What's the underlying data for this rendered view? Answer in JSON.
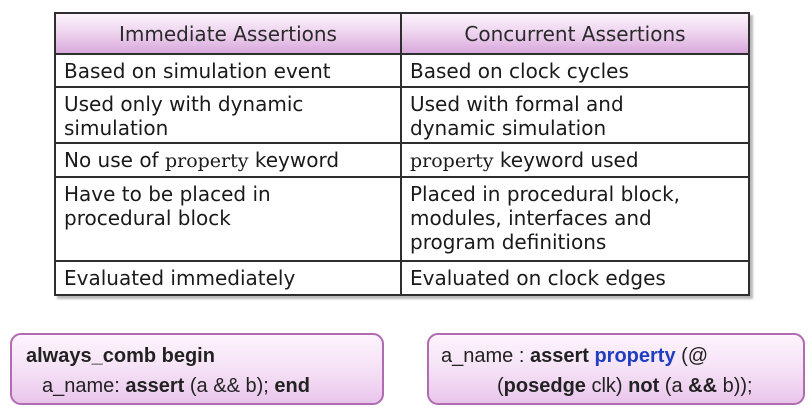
{
  "table": {
    "headers": [
      "Immediate Assertions",
      "Concurrent Assertions"
    ],
    "rows": [
      {
        "immediate": [
          "Based on simulation event"
        ],
        "concurrent": [
          "Based on clock cycles"
        ]
      },
      {
        "immediate": [
          "Used only with dynamic",
          "simulation"
        ],
        "concurrent": [
          "Used with formal and",
          "dynamic simulation"
        ]
      },
      {
        "immediate_pre": "No use of ",
        "immediate_kw": "property",
        "immediate_post": " keyword",
        "concurrent_kw": "property",
        "concurrent_post": " keyword used"
      },
      {
        "immediate": [
          "Have to be placed in",
          "procedural block"
        ],
        "concurrent": [
          "Placed in procedural block,",
          "modules, interfaces and",
          "program definitions"
        ]
      },
      {
        "immediate": [
          "Evaluated immediately"
        ],
        "concurrent": [
          "Evaluated on clock edges"
        ]
      }
    ]
  },
  "code_immediate": {
    "line1": "always_comb begin",
    "line2_name": "a_name: ",
    "line2_assert": "assert",
    "line2_expr": " (a && b); ",
    "line2_end": "end"
  },
  "code_concurrent": {
    "line1_name": "a_name : ",
    "line1_assert": "assert",
    "line1_sp": " ",
    "line1_property": "property",
    "line1_open": " (@",
    "line2_posedge": "posedge",
    "line2_clk": " clk) ",
    "line2_not": "not",
    "line2_a": " (a ",
    "line2_and": "&&",
    "line2_b": " b));"
  },
  "colors": {
    "header_gradient_top": "#fbf3fb",
    "header_gradient_bottom": "#d9a9dc",
    "code_border": "#b06bb3",
    "keyword_blue": "#1f3fc0"
  }
}
